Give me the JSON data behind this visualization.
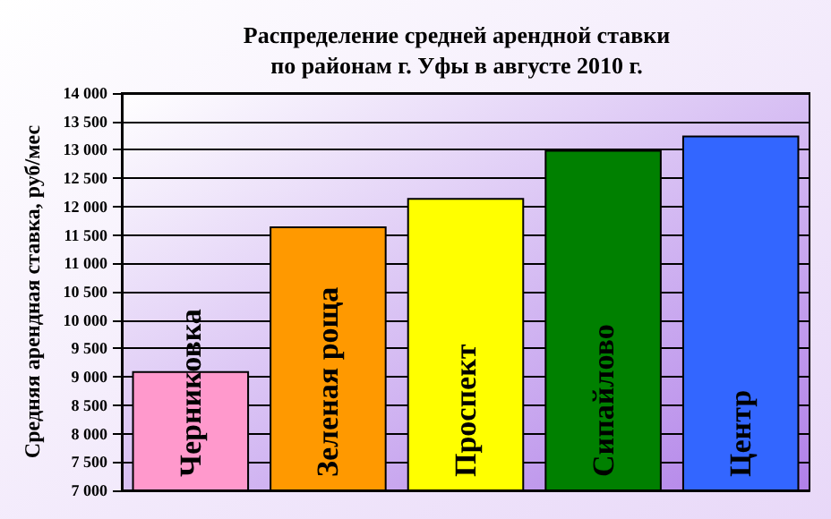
{
  "chart_data": {
    "type": "bar",
    "title": "Распределение средней арендной ставки\nпо районам г. Уфы в августе 2010 г.",
    "ylabel": "Средняя арендная ставка, руб/мес",
    "categories": [
      "Черниковка",
      "Зеленая роща",
      "Проспект",
      "Сипайлово",
      "Центр"
    ],
    "values": [
      9100,
      11650,
      12150,
      13000,
      13250
    ],
    "colors": [
      "#ff99cc",
      "#ff9900",
      "#ffff00",
      "#008000",
      "#3366ff"
    ],
    "ylim": [
      7000,
      14000
    ],
    "yticks": [
      {
        "value": 7000,
        "label": "7 000"
      },
      {
        "value": 7500,
        "label": "7 500"
      },
      {
        "value": 8000,
        "label": "8 000"
      },
      {
        "value": 8500,
        "label": "8 500"
      },
      {
        "value": 9000,
        "label": "9 000"
      },
      {
        "value": 9500,
        "label": "9 500"
      },
      {
        "value": 10000,
        "label": "10 000"
      },
      {
        "value": 10500,
        "label": "10 500"
      },
      {
        "value": 11000,
        "label": "11 000"
      },
      {
        "value": 11500,
        "label": "11 500"
      },
      {
        "value": 12000,
        "label": "12 000"
      },
      {
        "value": 12500,
        "label": "12 500"
      },
      {
        "value": 13000,
        "label": "13 000"
      },
      {
        "value": 13500,
        "label": "13 500"
      },
      {
        "value": 14000,
        "label": "14 000"
      }
    ],
    "grid": "y"
  }
}
